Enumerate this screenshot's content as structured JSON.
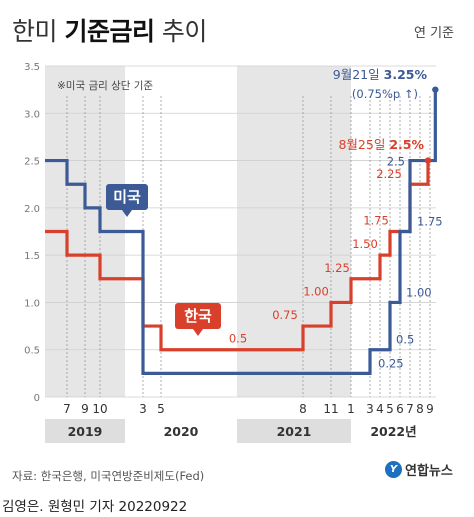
{
  "header": {
    "title_light_1": "한미 ",
    "title_bold": "기준금리",
    "title_light_2": " 추이",
    "unit": "연 기준"
  },
  "footer": {
    "source": "자료: 한국은행, 미국연방준비제도(Fed)",
    "logo_text": "연합뉴스",
    "credit": "김영은. 원형민 기자 20220922"
  },
  "colors": {
    "us": "#3c5a96",
    "korea": "#d9402b",
    "band_shade": "#e6e6e6",
    "band_white": "#ffffff",
    "year_band": "#dedede"
  },
  "chart_data": {
    "type": "line",
    "title": "한미 기준금리 추이",
    "note": "※미국 금리 상단 기준",
    "ylim": [
      0,
      3.5
    ],
    "y_ticks": [
      "0",
      "0.5",
      "1.0",
      "1.5",
      "2.0",
      "2.5",
      "3.0",
      "3.5"
    ],
    "x_ticks": [
      {
        "label": "7",
        "date": "2019-07"
      },
      {
        "label": "9",
        "date": "2019-09"
      },
      {
        "label": "10",
        "date": "2019-10"
      },
      {
        "label": "3",
        "date": "2020-03"
      },
      {
        "label": "5",
        "date": "2020-05"
      },
      {
        "label": "8",
        "date": "2021-08"
      },
      {
        "label": "11",
        "date": "2021-11"
      },
      {
        "label": "1",
        "date": "2022-01"
      },
      {
        "label": "3",
        "date": "2022-03"
      },
      {
        "label": "4",
        "date": "2022-04"
      },
      {
        "label": "5",
        "date": "2022-05"
      },
      {
        "label": "6",
        "date": "2022-06"
      },
      {
        "label": "7",
        "date": "2022-07"
      },
      {
        "label": "8",
        "date": "2022-08"
      },
      {
        "label": "9",
        "date": "2022-09"
      }
    ],
    "years": [
      "2019",
      "2020",
      "2021",
      "2022년"
    ],
    "series": [
      {
        "name": "미국",
        "color": "#3c5a96",
        "points": [
          {
            "date": "2019-01",
            "value": 2.5
          },
          {
            "date": "2019-07",
            "value": 2.25
          },
          {
            "date": "2019-09",
            "value": 2.0
          },
          {
            "date": "2019-10",
            "value": 1.75
          },
          {
            "date": "2020-03",
            "value": 0.25
          },
          {
            "date": "2022-03",
            "value": 0.5
          },
          {
            "date": "2022-05",
            "value": 1.0
          },
          {
            "date": "2022-06",
            "value": 1.75
          },
          {
            "date": "2022-07",
            "value": 2.5
          },
          {
            "date": "2022-09-21",
            "value": 3.25
          }
        ],
        "labels": [
          "0.25",
          "0.5",
          "1.00",
          "1.75",
          "2.5"
        ]
      },
      {
        "name": "한국",
        "color": "#d9402b",
        "points": [
          {
            "date": "2019-01",
            "value": 1.75
          },
          {
            "date": "2019-07",
            "value": 1.5
          },
          {
            "date": "2019-10",
            "value": 1.25
          },
          {
            "date": "2020-03",
            "value": 0.75
          },
          {
            "date": "2020-05",
            "value": 0.5
          },
          {
            "date": "2021-08",
            "value": 0.75
          },
          {
            "date": "2021-11",
            "value": 1.0
          },
          {
            "date": "2022-01",
            "value": 1.25
          },
          {
            "date": "2022-04",
            "value": 1.5
          },
          {
            "date": "2022-05",
            "value": 1.75
          },
          {
            "date": "2022-07",
            "value": 2.25
          },
          {
            "date": "2022-08-25",
            "value": 2.5
          }
        ],
        "labels": [
          "0.5",
          "0.75",
          "1.00",
          "1.25",
          "1.50",
          "1.75",
          "2.25"
        ]
      }
    ],
    "annotations": {
      "us_date": "9월21일",
      "us_value": "3.25%",
      "us_change": "(0.75%p ↑)",
      "kr_date": "8월25일",
      "kr_value": "2.5%"
    }
  }
}
